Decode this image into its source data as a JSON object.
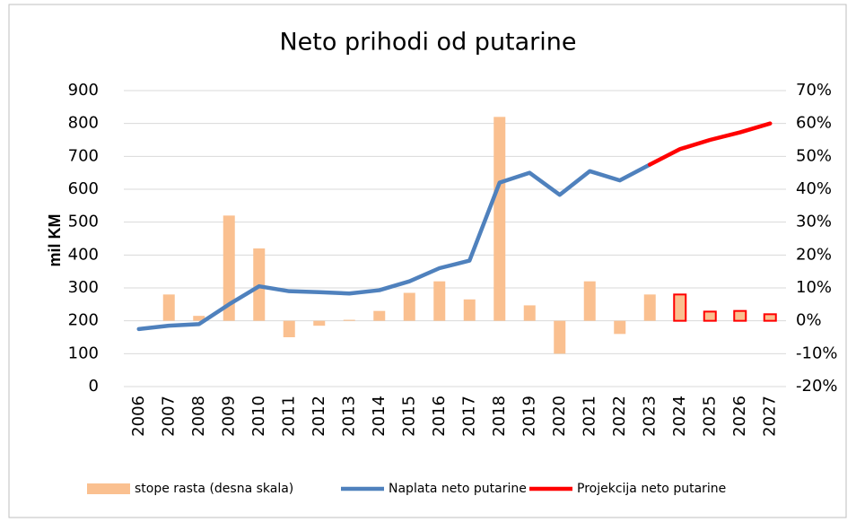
{
  "chart_data": {
    "type": "bar-line",
    "title": "Neto prihodi od putarine",
    "ylabel": "mil KM",
    "categories": [
      "2006",
      "2007",
      "2008",
      "2009",
      "2010",
      "2011",
      "2012",
      "2013",
      "2014",
      "2015",
      "2016",
      "2017",
      "2018",
      "2019",
      "2020",
      "2021",
      "2022",
      "2023",
      "2024",
      "2025",
      "2026",
      "2027"
    ],
    "series": [
      {
        "name": "stope rasta (desna skala)",
        "kind": "bar",
        "axis": "y2",
        "color": "#fac090",
        "colors": [
          null,
          "#fac090",
          "#fac090",
          "#fac090",
          "#fac090",
          "#fac090",
          "#fac090",
          "#fac090",
          "#fac090",
          "#fac090",
          "#fac090",
          "#fac090",
          "#fac090",
          "#fac090",
          "#fac090",
          "#fac090",
          "#fac090",
          "#fac090",
          "#fac090",
          "#fac090",
          "#fac090",
          "#fac090"
        ],
        "edgecolors": [
          null,
          null,
          null,
          null,
          null,
          null,
          null,
          null,
          null,
          null,
          null,
          null,
          null,
          null,
          null,
          null,
          null,
          null,
          "#ff0000",
          "#ff0000",
          "#ff0000",
          "#ff0000"
        ],
        "values": [
          null,
          8,
          1.5,
          32,
          22,
          -5,
          -1.5,
          0.3,
          3,
          8.5,
          12,
          6.5,
          62,
          4.7,
          -10,
          12,
          -4,
          8,
          8,
          2.8,
          3,
          2
        ]
      },
      {
        "name": "Naplata neto putarine",
        "kind": "line",
        "color": "#4f81bd",
        "values": [
          175,
          185,
          190,
          250,
          305,
          290,
          287,
          283,
          293,
          320,
          360,
          383,
          620,
          650,
          583,
          655,
          627,
          675,
          null,
          null,
          null,
          null
        ]
      },
      {
        "name": "Projekcija neto putarine",
        "kind": "line",
        "color": "#ff0000",
        "values": [
          null,
          null,
          null,
          null,
          null,
          null,
          null,
          null,
          null,
          null,
          null,
          null,
          null,
          null,
          null,
          null,
          null,
          675,
          722,
          750,
          773,
          800
        ]
      }
    ],
    "ylim": [
      0,
      900
    ],
    "yticks": [
      0,
      100,
      200,
      300,
      400,
      500,
      600,
      700,
      800,
      900
    ],
    "y2lim": [
      -20,
      70
    ],
    "y2ticks": [
      {
        "value": -20,
        "label": "-20%"
      },
      {
        "value": -10,
        "label": "-10%"
      },
      {
        "value": 0,
        "label": "0%"
      },
      {
        "value": 10,
        "label": "10%"
      },
      {
        "value": 20,
        "label": "20%"
      },
      {
        "value": 30,
        "label": "30%"
      },
      {
        "value": 40,
        "label": "40%"
      },
      {
        "value": 50,
        "label": "50%"
      },
      {
        "value": 60,
        "label": "60%"
      },
      {
        "value": 70,
        "label": "70%"
      }
    ],
    "grid": true,
    "legend": "bottom"
  }
}
